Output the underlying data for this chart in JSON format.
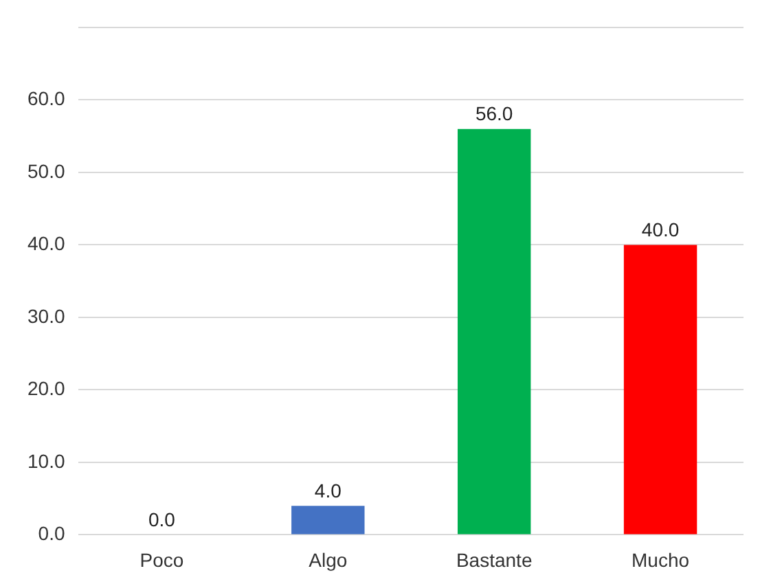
{
  "chart_data": {
    "type": "bar",
    "categories": [
      "Poco",
      "Algo",
      "Bastante",
      "Mucho"
    ],
    "values": [
      0,
      4,
      56,
      40
    ],
    "colors": [
      "#2f5597",
      "#4472c4",
      "#00b050",
      "#ff0000"
    ],
    "value_labels": [
      "0.0",
      "4.0",
      "56.0",
      "40.0"
    ],
    "ylim": [
      0,
      70
    ],
    "yticks": [
      {
        "value": 0,
        "label": "0.0"
      },
      {
        "value": 10,
        "label": "10.0"
      },
      {
        "value": 20,
        "label": "20.0"
      },
      {
        "value": 30,
        "label": "30.0"
      },
      {
        "value": 40,
        "label": "40.0"
      },
      {
        "value": 50,
        "label": "50.0"
      },
      {
        "value": 60,
        "label": "60.0"
      },
      {
        "value": 70,
        "label": null
      }
    ],
    "grid": "y",
    "legend": false
  }
}
